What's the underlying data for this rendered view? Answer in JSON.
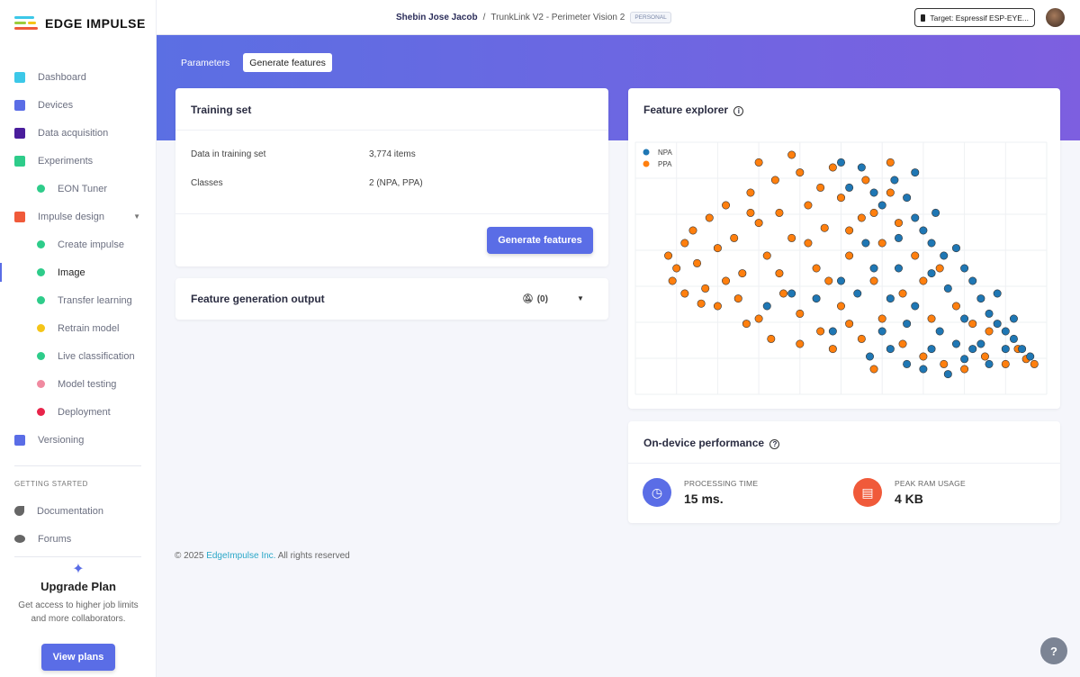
{
  "brand": {
    "name": "EDGE IMPULSE"
  },
  "sidebar": {
    "items": [
      {
        "label": "Dashboard",
        "icon": "monitor-icon",
        "color": "#3cc8e8"
      },
      {
        "label": "Devices",
        "icon": "chip-icon",
        "color": "#5a6de6"
      },
      {
        "label": "Data acquisition",
        "icon": "database-icon",
        "color": "#4a1d9c"
      },
      {
        "label": "Experiments",
        "icon": "grid-icon",
        "color": "#2ecc8a"
      },
      {
        "label": "EON Tuner",
        "icon": "compass-icon",
        "color": "#2ecc8a",
        "sub": true
      },
      {
        "label": "Impulse design",
        "icon": "pulse-icon",
        "color": "#f05a3a"
      },
      {
        "label": "Create impulse",
        "icon": "dot-icon",
        "color": "#2ecc8a",
        "sub": true
      },
      {
        "label": "Image",
        "icon": "dot-icon",
        "color": "#2ecc8a",
        "sub": true,
        "active": true
      },
      {
        "label": "Transfer learning",
        "icon": "dot-icon",
        "color": "#2ecc8a",
        "sub": true
      },
      {
        "label": "Retrain model",
        "icon": "shuffle-icon",
        "color": "#f5c518",
        "sub": true
      },
      {
        "label": "Live classification",
        "icon": "live-icon",
        "color": "#2ecc8a",
        "sub": true
      },
      {
        "label": "Model testing",
        "icon": "clipboard-icon",
        "color": "#f08aa0",
        "sub": true
      },
      {
        "label": "Deployment",
        "icon": "box-icon",
        "color": "#e8244a",
        "sub": true
      },
      {
        "label": "Versioning",
        "icon": "branch-icon",
        "color": "#5a6de6"
      }
    ],
    "section": "GETTING STARTED",
    "links": [
      {
        "label": "Documentation",
        "icon": "rocket-icon"
      },
      {
        "label": "Forums",
        "icon": "chat-icon"
      }
    ],
    "upgrade": {
      "title": "Upgrade Plan",
      "text": "Get access to higher job limits and more collaborators.",
      "button": "View plans"
    }
  },
  "header": {
    "user": "Shebin Jose Jacob",
    "separator": "/",
    "project": "TrunkLink V2 - Perimeter Vision 2",
    "badge": "PERSONAL",
    "target": "Target: Espressif ESP-EYE..."
  },
  "tabs": [
    {
      "label": "Parameters"
    },
    {
      "label": "Generate features",
      "selected": true
    }
  ],
  "training_set": {
    "title": "Training set",
    "rows": [
      {
        "label": "Data in training set",
        "value": "3,774 items"
      },
      {
        "label": "Classes",
        "value": "2 (NPA, PPA)"
      }
    ],
    "button": "Generate features"
  },
  "output": {
    "title": "Feature generation output",
    "count": "(0)"
  },
  "explorer": {
    "title": "Feature explorer"
  },
  "performance": {
    "title": "On-device performance",
    "items": [
      {
        "label": "PROCESSING TIME",
        "value": "15 ms.",
        "color": "#5a6de6"
      },
      {
        "label": "PEAK RAM USAGE",
        "value": "4 KB",
        "color": "#f05a3a"
      }
    ]
  },
  "footer": {
    "prefix": "© 2025",
    "link": "EdgeImpulse Inc.",
    "suffix": "All rights reserved"
  },
  "chart_data": {
    "type": "scatter",
    "grid": true,
    "legend": "top-left",
    "series": [
      {
        "name": "NPA",
        "color": "#1f77b4",
        "points": [
          [
            50,
            92
          ],
          [
            55,
            90
          ],
          [
            58,
            80
          ],
          [
            60,
            75
          ],
          [
            63,
            85
          ],
          [
            66,
            78
          ],
          [
            68,
            70
          ],
          [
            70,
            65
          ],
          [
            72,
            60
          ],
          [
            75,
            55
          ],
          [
            78,
            58
          ],
          [
            80,
            50
          ],
          [
            82,
            45
          ],
          [
            76,
            42
          ],
          [
            84,
            38
          ],
          [
            86,
            32
          ],
          [
            88,
            28
          ],
          [
            90,
            25
          ],
          [
            92,
            22
          ],
          [
            94,
            18
          ],
          [
            96,
            15
          ],
          [
            72,
            48
          ],
          [
            68,
            35
          ],
          [
            74,
            25
          ],
          [
            78,
            20
          ],
          [
            82,
            18
          ],
          [
            86,
            12
          ],
          [
            70,
            10
          ],
          [
            76,
            8
          ],
          [
            80,
            14
          ],
          [
            66,
            28
          ],
          [
            62,
            38
          ],
          [
            58,
            50
          ],
          [
            54,
            40
          ],
          [
            50,
            45
          ],
          [
            44,
            38
          ],
          [
            38,
            40
          ],
          [
            32,
            35
          ],
          [
            62,
            18
          ],
          [
            66,
            12
          ],
          [
            72,
            18
          ],
          [
            56,
            60
          ],
          [
            64,
            50
          ],
          [
            88,
            40
          ],
          [
            84,
            20
          ],
          [
            90,
            18
          ],
          [
            48,
            25
          ],
          [
            60,
            25
          ],
          [
            73,
            72
          ],
          [
            68,
            88
          ],
          [
            52,
            82
          ],
          [
            64,
            62
          ],
          [
            80,
            30
          ],
          [
            92,
            30
          ],
          [
            57,
            15
          ]
        ]
      },
      {
        "name": "PPA",
        "color": "#ff7f0e",
        "points": [
          [
            8,
            55
          ],
          [
            10,
            50
          ],
          [
            12,
            60
          ],
          [
            9,
            45
          ],
          [
            14,
            65
          ],
          [
            15,
            52
          ],
          [
            18,
            70
          ],
          [
            20,
            58
          ],
          [
            17,
            42
          ],
          [
            22,
            75
          ],
          [
            24,
            62
          ],
          [
            26,
            48
          ],
          [
            28,
            80
          ],
          [
            30,
            68
          ],
          [
            25,
            38
          ],
          [
            32,
            55
          ],
          [
            34,
            85
          ],
          [
            35,
            72
          ],
          [
            36,
            40
          ],
          [
            30,
            30
          ],
          [
            38,
            62
          ],
          [
            40,
            88
          ],
          [
            42,
            75
          ],
          [
            44,
            50
          ],
          [
            40,
            32
          ],
          [
            46,
            66
          ],
          [
            48,
            90
          ],
          [
            50,
            78
          ],
          [
            52,
            55
          ],
          [
            45,
            25
          ],
          [
            55,
            70
          ],
          [
            56,
            85
          ],
          [
            58,
            45
          ],
          [
            50,
            35
          ],
          [
            60,
            60
          ],
          [
            62,
            80
          ],
          [
            20,
            35
          ],
          [
            27,
            28
          ],
          [
            33,
            22
          ],
          [
            40,
            20
          ],
          [
            48,
            18
          ],
          [
            55,
            22
          ],
          [
            60,
            30
          ],
          [
            65,
            20
          ],
          [
            70,
            15
          ],
          [
            75,
            12
          ],
          [
            80,
            10
          ],
          [
            85,
            15
          ],
          [
            90,
            12
          ],
          [
            95,
            14
          ],
          [
            97,
            12
          ],
          [
            93,
            18
          ],
          [
            65,
            40
          ],
          [
            68,
            55
          ],
          [
            70,
            45
          ],
          [
            72,
            30
          ],
          [
            62,
            92
          ],
          [
            38,
            95
          ],
          [
            30,
            92
          ],
          [
            45,
            82
          ],
          [
            52,
            65
          ],
          [
            42,
            60
          ],
          [
            35,
            48
          ],
          [
            22,
            45
          ],
          [
            16,
            36
          ],
          [
            12,
            40
          ],
          [
            28,
            72
          ],
          [
            58,
            72
          ],
          [
            64,
            68
          ],
          [
            74,
            50
          ],
          [
            78,
            35
          ],
          [
            82,
            28
          ],
          [
            86,
            25
          ],
          [
            58,
            10
          ],
          [
            52,
            28
          ],
          [
            47,
            45
          ]
        ]
      }
    ]
  }
}
